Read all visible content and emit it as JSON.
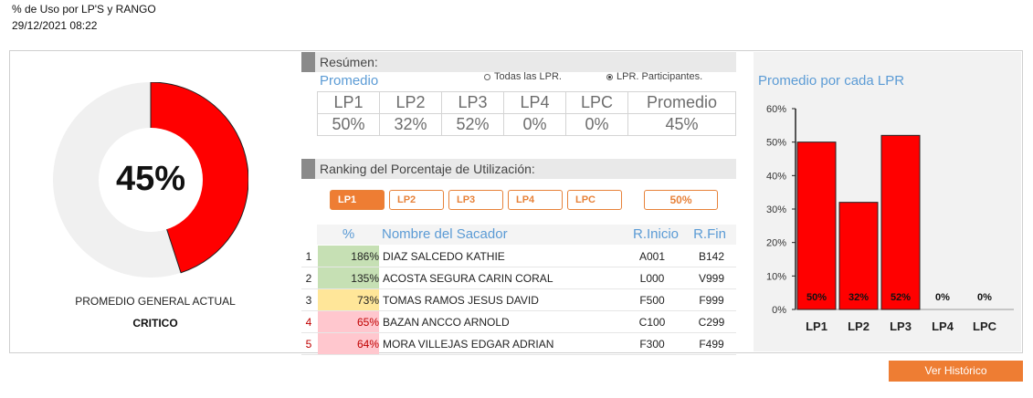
{
  "header": {
    "title": "% de Uso por LP'S y RANGO",
    "datetime": "29/12/2021 08:22"
  },
  "general": {
    "value_text": "45%",
    "value": 45,
    "label": "PROMEDIO GENERAL ACTUAL",
    "status": "CRITICO",
    "fill_color": "#ff0000",
    "track_color": "#f0f0f0"
  },
  "summary": {
    "section_title": "Resúmen:",
    "subtitle": "Promedio",
    "radio_all": "Todas las LPR.",
    "radio_participants": "LPR. Participantes.",
    "selected_radio": "participants",
    "headers": [
      "LP1",
      "LP2",
      "LP3",
      "LP4",
      "LPC",
      "Promedio"
    ],
    "values": [
      "50%",
      "32%",
      "52%",
      "0%",
      "0%",
      "45%"
    ]
  },
  "ranking": {
    "section_title": "Ranking del Porcentaje de Utilización:",
    "tabs": [
      "LP1",
      "LP2",
      "LP3",
      "LP4",
      "LPC"
    ],
    "active_tab": "LP1",
    "tab_percent": "50%",
    "col_percent": "%",
    "col_name": "Nombre del Sacador",
    "col_start": "R.Inicio",
    "col_end": "R.Fin",
    "rows": [
      {
        "idx": "1",
        "pct": "186%",
        "name": "DIAZ SALCEDO KATHIE",
        "start": "A001",
        "end": "B142",
        "color": "#c6e0b4",
        "idx_color": "#222222"
      },
      {
        "idx": "2",
        "pct": "135%",
        "name": "ACOSTA SEGURA CARIN CORAL",
        "start": "L000",
        "end": "V999",
        "color": "#c6e0b4",
        "idx_color": "#222222"
      },
      {
        "idx": "3",
        "pct": "73%",
        "name": "TOMAS RAMOS JESUS DAVID",
        "start": "F500",
        "end": "F999",
        "color": "#ffe699",
        "idx_color": "#222222"
      },
      {
        "idx": "4",
        "pct": "65%",
        "name": "BAZAN ANCCO ARNOLD",
        "start": "C100",
        "end": "C299",
        "color": "#ffc7ce",
        "idx_color": "#c00000"
      },
      {
        "idx": "5",
        "pct": "64%",
        "name": "MORA VILLEJAS EDGAR ADRIAN",
        "start": "F300",
        "end": "F499",
        "color": "#ffc7ce",
        "idx_color": "#c00000"
      }
    ]
  },
  "chart_data": {
    "type": "bar",
    "title": "Promedio por cada LPR",
    "categories": [
      "LP1",
      "LP2",
      "LP3",
      "LP4",
      "LPC"
    ],
    "values": [
      50,
      32,
      52,
      0,
      0
    ],
    "data_labels": [
      "50%",
      "32%",
      "52%",
      "0%",
      "0%"
    ],
    "yticks": [
      "0%",
      "10%",
      "20%",
      "30%",
      "40%",
      "50%",
      "60%"
    ],
    "ylim": [
      0,
      60
    ],
    "bar_color": "#ff0000",
    "grid": false,
    "legend": "none"
  },
  "actions": {
    "history_label": "Ver Histórico"
  }
}
